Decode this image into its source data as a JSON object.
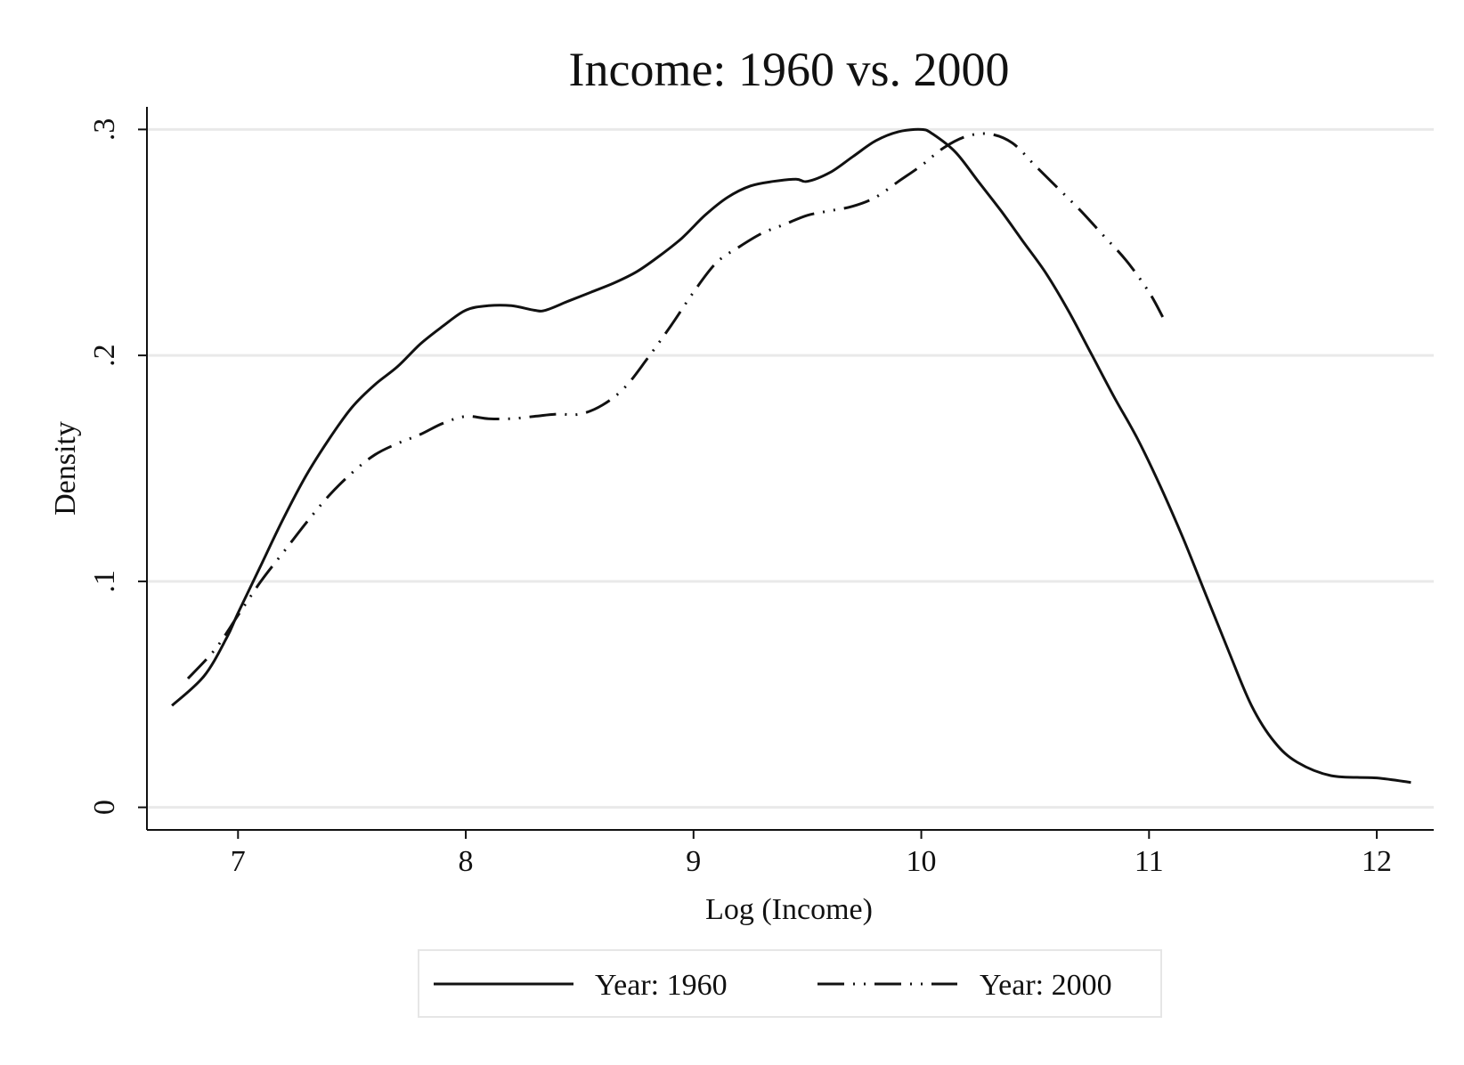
{
  "chart_data": {
    "type": "line",
    "title": "Income: 1960 vs. 2000",
    "xlabel": "Log (Income)",
    "ylabel": "Density",
    "xlim": [
      6.6,
      12.25
    ],
    "ylim": [
      -0.01,
      0.31
    ],
    "x_ticks": [
      7,
      8,
      9,
      10,
      11,
      12
    ],
    "x_tick_labels": [
      "7",
      "8",
      "9",
      "10",
      "11",
      "12"
    ],
    "y_ticks": [
      0,
      0.1,
      0.2,
      0.3
    ],
    "y_tick_labels": [
      "0",
      ".1",
      ".2",
      ".3"
    ],
    "grid": "horizontal",
    "legend_position": "bottom",
    "series": [
      {
        "name": "Year: 1960",
        "line_style": "solid",
        "color": "#111111",
        "x": [
          6.71,
          6.85,
          6.95,
          7.0,
          7.1,
          7.2,
          7.3,
          7.4,
          7.5,
          7.6,
          7.7,
          7.8,
          7.9,
          8.0,
          8.1,
          8.2,
          8.3,
          8.35,
          8.45,
          8.55,
          8.65,
          8.75,
          8.85,
          8.95,
          9.05,
          9.15,
          9.25,
          9.35,
          9.45,
          9.5,
          9.6,
          9.7,
          9.8,
          9.9,
          10.0,
          10.05,
          10.15,
          10.25,
          10.35,
          10.45,
          10.55,
          10.65,
          10.75,
          10.85,
          10.95,
          11.05,
          11.15,
          11.25,
          11.35,
          11.45,
          11.55,
          11.65,
          11.8,
          12.0,
          12.15
        ],
        "y": [
          0.045,
          0.058,
          0.075,
          0.086,
          0.107,
          0.128,
          0.147,
          0.163,
          0.177,
          0.187,
          0.195,
          0.205,
          0.213,
          0.22,
          0.222,
          0.222,
          0.22,
          0.22,
          0.224,
          0.228,
          0.232,
          0.237,
          0.244,
          0.252,
          0.262,
          0.27,
          0.275,
          0.277,
          0.278,
          0.277,
          0.281,
          0.288,
          0.295,
          0.299,
          0.3,
          0.298,
          0.29,
          0.277,
          0.264,
          0.25,
          0.236,
          0.219,
          0.2,
          0.181,
          0.163,
          0.142,
          0.119,
          0.094,
          0.069,
          0.045,
          0.029,
          0.02,
          0.014,
          0.013,
          0.011
        ]
      },
      {
        "name": "Year: 2000",
        "line_style": "dash-dot",
        "color": "#111111",
        "x": [
          6.78,
          6.9,
          7.0,
          7.1,
          7.2,
          7.3,
          7.4,
          7.5,
          7.6,
          7.7,
          7.8,
          7.9,
          8.0,
          8.1,
          8.2,
          8.3,
          8.4,
          8.5,
          8.6,
          8.7,
          8.8,
          8.9,
          9.0,
          9.1,
          9.2,
          9.3,
          9.4,
          9.5,
          9.6,
          9.7,
          9.8,
          9.9,
          10.0,
          10.1,
          10.2,
          10.3,
          10.4,
          10.5,
          10.6,
          10.7,
          10.8,
          10.9,
          11.0,
          11.06
        ],
        "y": [
          0.057,
          0.07,
          0.085,
          0.1,
          0.113,
          0.126,
          0.138,
          0.148,
          0.156,
          0.161,
          0.165,
          0.17,
          0.173,
          0.172,
          0.172,
          0.173,
          0.174,
          0.174,
          0.178,
          0.186,
          0.199,
          0.213,
          0.228,
          0.241,
          0.248,
          0.254,
          0.258,
          0.262,
          0.264,
          0.266,
          0.27,
          0.277,
          0.284,
          0.292,
          0.297,
          0.298,
          0.294,
          0.284,
          0.274,
          0.264,
          0.253,
          0.242,
          0.228,
          0.217
        ]
      }
    ]
  }
}
